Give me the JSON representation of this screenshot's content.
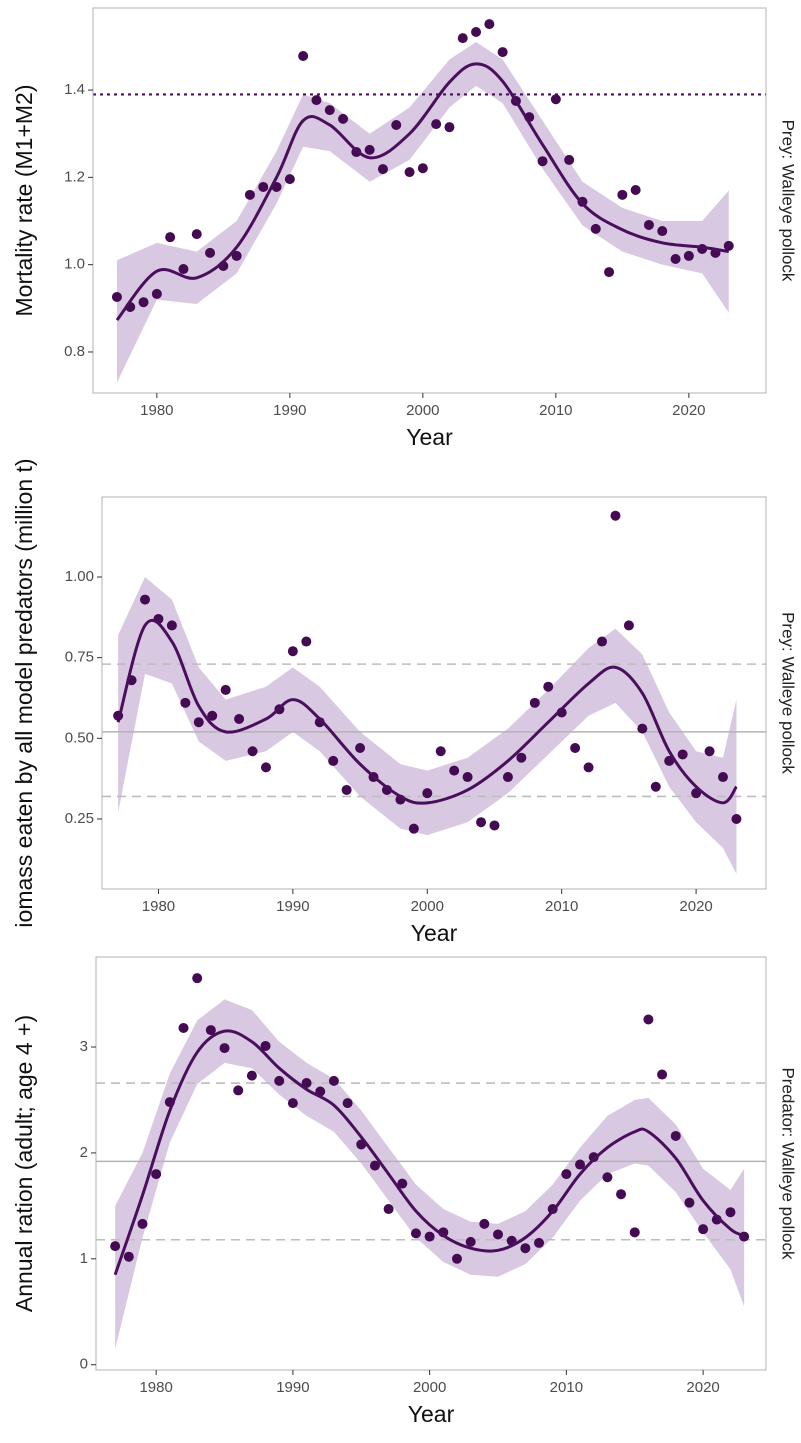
{
  "chart_data": [
    {
      "type": "scatter",
      "xlabel": "Year",
      "ylabel": "Mortality rate (M1+M2)",
      "facet": "Prey: Walleye pollock",
      "xlim": [
        1975.2,
        2025.8
      ],
      "xticks": [
        1980,
        1990,
        2000,
        2010,
        2020
      ],
      "ylim": [
        0.706,
        1.588
      ],
      "yticks": [
        0.8,
        {
          "value": 1,
          "label": "1.0"
        },
        1.2,
        1.4
      ],
      "color": "#440a52",
      "x": [
        1977,
        1978,
        1979,
        1980,
        1981,
        1982,
        1983,
        1984,
        1985,
        1986,
        1987,
        1988,
        1989,
        1990,
        1991,
        1992,
        1993,
        1994,
        1995,
        1996,
        1997,
        1998,
        1999,
        2000,
        2001,
        2002,
        2003,
        2004,
        2005,
        2006,
        2007,
        2008,
        2009,
        2010,
        2011,
        2012,
        2013,
        2014,
        2015,
        2016,
        2017,
        2018,
        2019,
        2020,
        2021,
        2022,
        2023
      ],
      "values": [
        0.926,
        0.903,
        0.914,
        0.933,
        1.063,
        0.99,
        1.07,
        1.027,
        0.997,
        1.02,
        1.16,
        1.178,
        1.178,
        1.196,
        1.478,
        1.377,
        1.354,
        1.334,
        1.258,
        1.263,
        1.219,
        1.32,
        1.212,
        1.221,
        1.322,
        1.315,
        1.519,
        1.533,
        1.551,
        1.487,
        1.375,
        1.338,
        1.237,
        1.379,
        1.24,
        1.144,
        1.082,
        0.983,
        1.16,
        1.171,
        1.091,
        1.077,
        1.013,
        1.02,
        1.036,
        1.027,
        1.043
      ],
      "fit": {
        "color": "#4a0f5c",
        "band_color": "#d9c8e1",
        "x": [
          1977,
          1980,
          1983,
          1986,
          1989,
          1991,
          1993,
          1996,
          1999,
          2002,
          2004,
          2006,
          2009,
          2012,
          2015,
          2018,
          2021,
          2023
        ],
        "values": [
          0.873,
          0.985,
          0.97,
          1.04,
          1.2,
          1.33,
          1.32,
          1.245,
          1.3,
          1.418,
          1.46,
          1.42,
          1.275,
          1.14,
          1.08,
          1.05,
          1.04,
          1.03
        ],
        "lower": [
          0.73,
          0.92,
          0.91,
          0.98,
          1.14,
          1.27,
          1.26,
          1.19,
          1.24,
          1.36,
          1.41,
          1.37,
          1.22,
          1.09,
          1.03,
          1.0,
          0.98,
          0.89
        ],
        "upper": [
          1.01,
          1.05,
          1.03,
          1.1,
          1.26,
          1.39,
          1.37,
          1.3,
          1.36,
          1.47,
          1.51,
          1.47,
          1.33,
          1.19,
          1.13,
          1.1,
          1.1,
          1.17
        ]
      },
      "reference_lines": [
        {
          "value": 1.39,
          "style": "dotted",
          "color": "#4a0f5c"
        }
      ]
    },
    {
      "type": "scatter",
      "xlabel": "Year",
      "ylabel": "iomass eaten by all model predators (million t)",
      "facet": "Prey: Walleye pollock",
      "xlim": [
        1975.8,
        2025.2
      ],
      "xticks": [
        1980,
        1990,
        2000,
        2010,
        2020
      ],
      "ylim": [
        0.033,
        1.248
      ],
      "yticks": [
        0.25,
        {
          "value": 0.5,
          "label": "0.50"
        },
        0.75,
        {
          "value": 1,
          "label": "1.00"
        }
      ],
      "color": "#440a52",
      "x": [
        1977,
        1978,
        1979,
        1980,
        1981,
        1982,
        1983,
        1984,
        1985,
        1986,
        1987,
        1988,
        1989,
        1990,
        1991,
        1992,
        1993,
        1994,
        1995,
        1996,
        1997,
        1998,
        1999,
        2000,
        2001,
        2002,
        2003,
        2004,
        2005,
        2006,
        2007,
        2008,
        2009,
        2010,
        2011,
        2012,
        2013,
        2014,
        2015,
        2016,
        2017,
        2018,
        2019,
        2020,
        2021,
        2022,
        2023
      ],
      "values": [
        0.57,
        0.68,
        0.93,
        0.87,
        0.85,
        0.61,
        0.55,
        0.57,
        0.65,
        0.56,
        0.46,
        0.41,
        0.59,
        0.77,
        0.8,
        0.55,
        0.43,
        0.34,
        0.47,
        0.38,
        0.34,
        0.31,
        0.22,
        0.33,
        0.46,
        0.4,
        0.38,
        0.24,
        0.23,
        0.38,
        0.44,
        0.61,
        0.66,
        0.58,
        0.47,
        0.41,
        0.8,
        1.19,
        0.85,
        0.53,
        0.35,
        0.43,
        0.45,
        0.33,
        0.46,
        0.38,
        0.25
      ],
      "fit": {
        "color": "#4a0f5c",
        "band_color": "#d9c8e1",
        "x": [
          1977,
          1979,
          1981,
          1983,
          1985,
          1988,
          1990,
          1992,
          1995,
          1998,
          2000,
          2003,
          2006,
          2009,
          2012,
          2014,
          2016,
          2018,
          2020,
          2022,
          2023
        ],
        "values": [
          0.55,
          0.85,
          0.8,
          0.6,
          0.52,
          0.56,
          0.62,
          0.56,
          0.42,
          0.32,
          0.3,
          0.34,
          0.43,
          0.55,
          0.67,
          0.72,
          0.64,
          0.46,
          0.35,
          0.3,
          0.35
        ],
        "lower": [
          0.27,
          0.7,
          0.67,
          0.49,
          0.43,
          0.46,
          0.52,
          0.46,
          0.32,
          0.22,
          0.2,
          0.24,
          0.33,
          0.45,
          0.57,
          0.61,
          0.52,
          0.35,
          0.24,
          0.16,
          0.08
        ],
        "upper": [
          0.82,
          1.0,
          0.93,
          0.72,
          0.62,
          0.66,
          0.72,
          0.66,
          0.52,
          0.42,
          0.4,
          0.44,
          0.53,
          0.65,
          0.78,
          0.84,
          0.76,
          0.58,
          0.46,
          0.44,
          0.62
        ]
      },
      "reference_lines": [
        {
          "value": 0.73,
          "style": "dashed",
          "color": "#bdbdbd"
        },
        {
          "value": 0.52,
          "style": "solid",
          "color": "#b3b3b3"
        },
        {
          "value": 0.32,
          "style": "dashed",
          "color": "#bdbdbd"
        }
      ]
    },
    {
      "type": "scatter",
      "xlabel": "Year",
      "ylabel": "Annual ration (adult; age 4 +)",
      "facet": "Predator: Walleye pollock",
      "xlim": [
        1975.6,
        2024.6
      ],
      "xticks": [
        1980,
        1990,
        2000,
        2010,
        2020
      ],
      "ylim": [
        -0.05,
        3.85
      ],
      "yticks": [
        0,
        1,
        2,
        3
      ],
      "color": "#440a52",
      "x": [
        1977,
        1978,
        1979,
        1980,
        1981,
        1982,
        1983,
        1984,
        1985,
        1986,
        1987,
        1988,
        1989,
        1990,
        1991,
        1992,
        1993,
        1994,
        1995,
        1996,
        1997,
        1998,
        1999,
        2000,
        2001,
        2002,
        2003,
        2004,
        2005,
        2006,
        2007,
        2008,
        2009,
        2010,
        2011,
        2012,
        2013,
        2014,
        2015,
        2016,
        2017,
        2018,
        2019,
        2020,
        2021,
        2022,
        2023
      ],
      "values": [
        1.12,
        1.02,
        1.33,
        1.8,
        2.48,
        3.18,
        3.65,
        3.16,
        2.99,
        2.59,
        2.73,
        3.01,
        2.68,
        2.47,
        2.66,
        2.58,
        2.68,
        2.47,
        2.08,
        1.88,
        1.47,
        1.71,
        1.24,
        1.21,
        1.25,
        1.0,
        1.16,
        1.33,
        1.23,
        1.17,
        1.1,
        1.15,
        1.47,
        1.8,
        1.89,
        1.96,
        1.77,
        1.61,
        1.25,
        3.26,
        2.74,
        2.16,
        1.53,
        1.28,
        1.37,
        1.44,
        1.21
      ],
      "fit": {
        "color": "#4a0f5c",
        "band_color": "#d9c8e1",
        "x": [
          1977,
          1979,
          1981,
          1983,
          1985,
          1987,
          1989,
          1991,
          1993,
          1995,
          1997,
          1999,
          2001,
          2003,
          2005,
          2007,
          2009,
          2011,
          2013,
          2015,
          2016,
          2018,
          2020,
          2022,
          2023
        ],
        "values": [
          0.85,
          1.6,
          2.4,
          2.95,
          3.15,
          3.05,
          2.8,
          2.6,
          2.45,
          2.15,
          1.8,
          1.45,
          1.22,
          1.1,
          1.08,
          1.2,
          1.45,
          1.8,
          2.05,
          2.2,
          2.2,
          1.95,
          1.55,
          1.28,
          1.22
        ],
        "lower": [
          0.15,
          1.2,
          2.1,
          2.65,
          2.85,
          2.8,
          2.55,
          2.35,
          2.2,
          1.9,
          1.55,
          1.2,
          0.97,
          0.85,
          0.83,
          0.95,
          1.2,
          1.55,
          1.8,
          1.9,
          1.88,
          1.63,
          1.25,
          0.9,
          0.55
        ],
        "upper": [
          1.5,
          2.0,
          2.75,
          3.25,
          3.45,
          3.35,
          3.05,
          2.85,
          2.7,
          2.4,
          2.05,
          1.7,
          1.47,
          1.35,
          1.33,
          1.45,
          1.7,
          2.05,
          2.35,
          2.5,
          2.52,
          2.27,
          1.85,
          1.65,
          1.85
        ]
      },
      "reference_lines": [
        {
          "value": 2.66,
          "style": "dashed",
          "color": "#bdbdbd"
        },
        {
          "value": 1.92,
          "style": "solid",
          "color": "#b3b3b3"
        },
        {
          "value": 1.18,
          "style": "dashed",
          "color": "#bdbdbd"
        }
      ]
    }
  ]
}
